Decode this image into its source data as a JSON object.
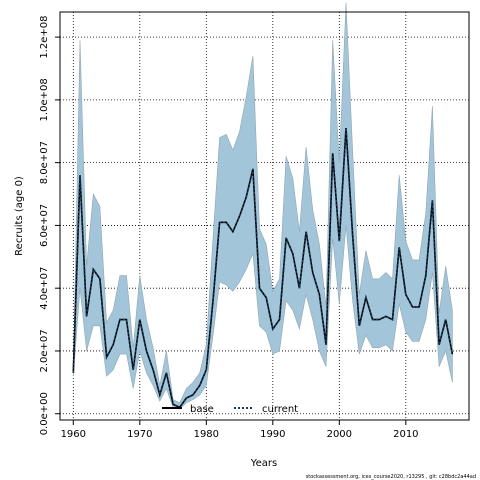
{
  "chart_data": {
    "type": "line",
    "xlabel": "Years",
    "ylabel": "Recruits (age 0)",
    "xlim": [
      1958.0,
      2019.5
    ],
    "ylim": [
      -2000000,
      128000000
    ],
    "x_ticks": [
      1960,
      1970,
      1980,
      1990,
      2000,
      2010
    ],
    "x_tick_labels": [
      "1960",
      "1970",
      "1980",
      "1990",
      "2000",
      "2010"
    ],
    "y_ticks": [
      0,
      20000000,
      40000000,
      60000000,
      80000000,
      100000000,
      120000000
    ],
    "y_tick_labels": [
      "0.0e+00",
      "2.0e+07",
      "4.0e+07",
      "6.0e+07",
      "8.0e+07",
      "1.0e+08",
      "1.2e+08"
    ],
    "grid": true,
    "legend": {
      "placement": "bottom-center",
      "entries": [
        "base",
        "current"
      ]
    },
    "colors": {
      "band": "#a3c5d9",
      "band_edge": "#8fa6b3",
      "line": "#000000",
      "current": "#1a3a5a"
    },
    "x": [
      1960,
      1961,
      1962,
      1963,
      1964,
      1965,
      1966,
      1967,
      1968,
      1969,
      1970,
      1971,
      1972,
      1973,
      1974,
      1975,
      1976,
      1977,
      1978,
      1979,
      1980,
      1981,
      1982,
      1983,
      1984,
      1985,
      1986,
      1987,
      1988,
      1989,
      1990,
      1991,
      1992,
      1993,
      1994,
      1995,
      1996,
      1997,
      1998,
      1999,
      2000,
      2001,
      2002,
      2003,
      2004,
      2005,
      2006,
      2007,
      2008,
      2009,
      2010,
      2011,
      2012,
      2013,
      2014,
      2015,
      2016,
      2017
    ],
    "series": [
      {
        "name": "base",
        "values": [
          13000000,
          76000000,
          31000000,
          46000000,
          43000000,
          18000000,
          22000000,
          30000000,
          30000000,
          14000000,
          30000000,
          20000000,
          14000000,
          6000000,
          13000000,
          3000000,
          2000000,
          5000000,
          6000000,
          9000000,
          14000000,
          36000000,
          61000000,
          61000000,
          58000000,
          63000000,
          69000000,
          78000000,
          40000000,
          37000000,
          27000000,
          30000000,
          56000000,
          51000000,
          40000000,
          58000000,
          45000000,
          38000000,
          22000000,
          83000000,
          55000000,
          91000000,
          57000000,
          28000000,
          37000000,
          30000000,
          30000000,
          31000000,
          30000000,
          53000000,
          38000000,
          34000000,
          34000000,
          44000000,
          68000000,
          22000000,
          30000000,
          19000000
        ]
      },
      {
        "name": "current",
        "values": [
          13000000,
          76000000,
          31000000,
          46000000,
          43000000,
          18000000,
          22000000,
          30000000,
          30000000,
          14000000,
          30000000,
          20000000,
          14000000,
          6000000,
          13000000,
          3000000,
          2000000,
          5000000,
          6000000,
          9000000,
          14000000,
          36000000,
          61000000,
          61000000,
          58000000,
          63000000,
          69000000,
          78000000,
          40000000,
          37000000,
          27000000,
          30000000,
          56000000,
          51000000,
          40000000,
          58000000,
          45000000,
          38000000,
          22000000,
          83000000,
          55000000,
          91000000,
          57000000,
          28000000,
          37000000,
          30000000,
          30000000,
          31000000,
          30000000,
          53000000,
          38000000,
          34000000,
          34000000,
          44000000,
          68000000,
          22000000,
          30000000,
          19000000
        ]
      }
    ],
    "band_lower": [
      12000000,
      40000000,
      20000000,
      28000000,
      28000000,
      12000000,
      14000000,
      19000000,
      19000000,
      8000000,
      20000000,
      13000000,
      9000000,
      4000000,
      8000000,
      2000000,
      1500000,
      3500000,
      4500000,
      6000000,
      9000000,
      25000000,
      42000000,
      41000000,
      39000000,
      42000000,
      46000000,
      51000000,
      28000000,
      26000000,
      19000000,
      20000000,
      36000000,
      33000000,
      27000000,
      38000000,
      30000000,
      20000000,
      15000000,
      56000000,
      35000000,
      60000000,
      36000000,
      19000000,
      25000000,
      21000000,
      21000000,
      22000000,
      20000000,
      35000000,
      26000000,
      23000000,
      23000000,
      30000000,
      45000000,
      15000000,
      20000000,
      10000000
    ],
    "band_upper": [
      14000000,
      119000000,
      47000000,
      70000000,
      66000000,
      29000000,
      33000000,
      44000000,
      44000000,
      21000000,
      44000000,
      30000000,
      21000000,
      9000000,
      20000000,
      4500000,
      3500000,
      8000000,
      10000000,
      13000000,
      22000000,
      56000000,
      88000000,
      89000000,
      84000000,
      90000000,
      101000000,
      114000000,
      59000000,
      54000000,
      39000000,
      43000000,
      82000000,
      75000000,
      58000000,
      85000000,
      65000000,
      54000000,
      34000000,
      119000000,
      80000000,
      131000000,
      84000000,
      38000000,
      52000000,
      43000000,
      43000000,
      45000000,
      43000000,
      76000000,
      55000000,
      49000000,
      49000000,
      64000000,
      98000000,
      32000000,
      47000000,
      33000000
    ]
  },
  "footer_text": "stockassessment.org, ices_course2020, r13295 , git: c28bdc2a44ad"
}
